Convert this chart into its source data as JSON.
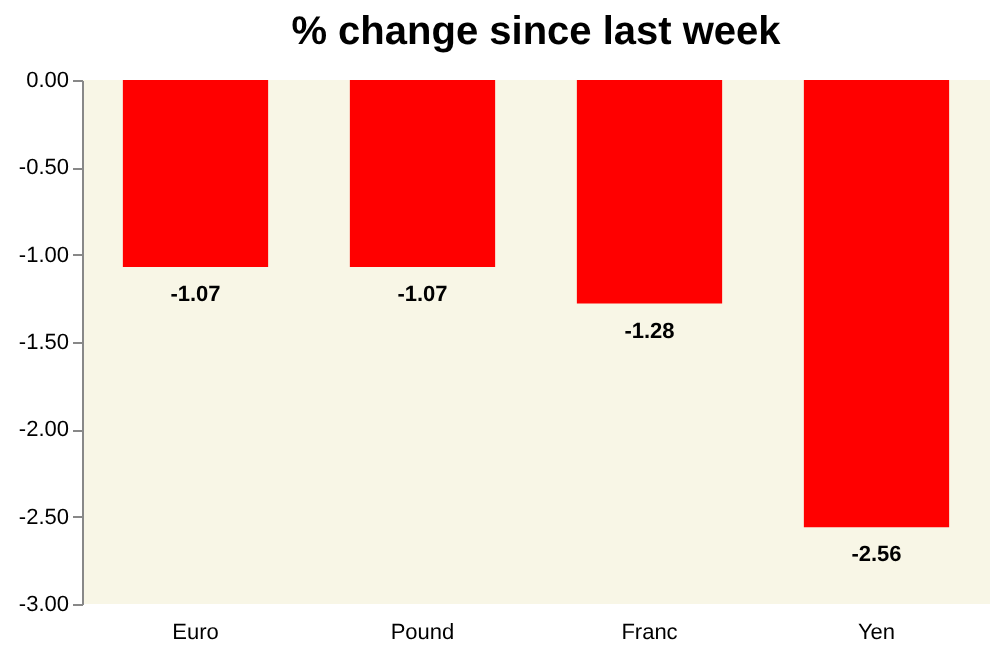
{
  "chart_data": {
    "type": "bar",
    "title": "% change since last week",
    "categories": [
      "Euro",
      "Pound",
      "Franc",
      "Yen"
    ],
    "values": [
      -1.07,
      -1.07,
      -1.28,
      -2.56
    ],
    "color": "#ff0000",
    "ylim": [
      -3,
      0
    ],
    "yticks": [
      {
        "value": 0,
        "label": "0.00"
      },
      {
        "value": -0.5,
        "label": "-0.50"
      },
      {
        "value": -1,
        "label": "-1.00"
      },
      {
        "value": -1.5,
        "label": "-1.50"
      },
      {
        "value": -2,
        "label": "-2.00"
      },
      {
        "value": -2.5,
        "label": "-2.50"
      },
      {
        "value": -3,
        "label": "-3.00"
      }
    ],
    "data_labels": true
  }
}
